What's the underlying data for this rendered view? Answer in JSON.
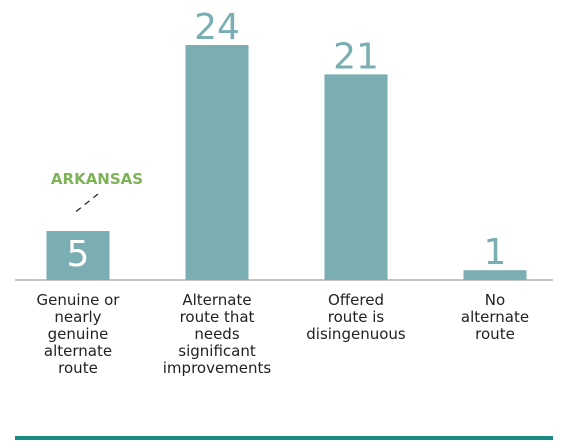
{
  "chart_data": {
    "type": "bar",
    "categories": [
      "Genuine or\nnearly\ngenuine\nalternate\nroute",
      "Alternate\nroute that\nneeds\nsignificant\nimprovements",
      "Offered\nroute is\ndisingenuous",
      "No\nalternate\nroute"
    ],
    "values": [
      5,
      24,
      21,
      1
    ],
    "color": "#7aaeb2",
    "ylim": [
      0,
      24
    ],
    "annotation": "ARKANSAS"
  }
}
